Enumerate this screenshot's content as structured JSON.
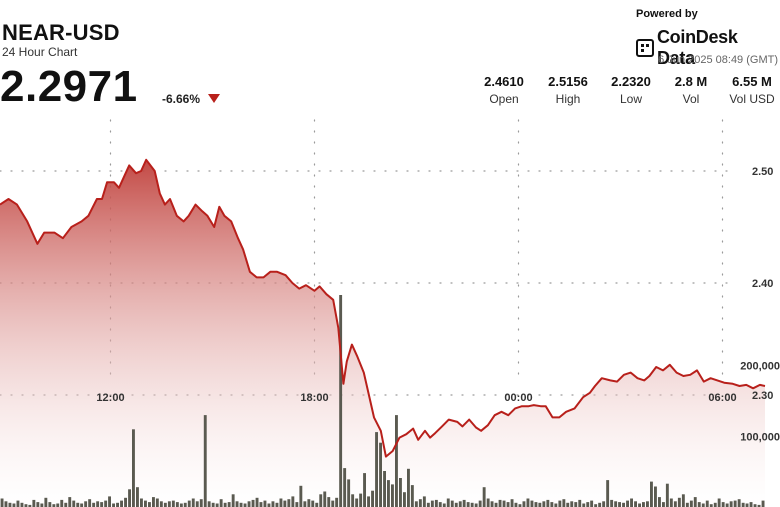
{
  "header": {
    "symbol": "NEAR-USD",
    "subtitle": "24 Hour Chart",
    "price": "2.2971",
    "change": "-6.66%",
    "change_direction_icon": "triangle-down-icon",
    "down_color": "#b8201b"
  },
  "branding": {
    "powered_by": "Powered by",
    "name": "CoinDesk Data",
    "icon": "coindesk-logo-icon",
    "date": "6 Jun 2025 08:49 (GMT)"
  },
  "stats": [
    {
      "value": "2.4610",
      "label": "Open"
    },
    {
      "value": "2.5156",
      "label": "High"
    },
    {
      "value": "2.2320",
      "label": "Low"
    },
    {
      "value": "2.8 M",
      "label": "Vol"
    },
    {
      "value": "6.55 M",
      "label": "Vol USD"
    }
  ],
  "chart_data": {
    "type": "area",
    "title": "NEAR-USD",
    "subtitle": "24 Hour Chart",
    "x_ticks": [
      "12:00",
      "18:00",
      "00:00",
      "06:00"
    ],
    "x_tick_hours": [
      3.25,
      9.25,
      15.25,
      21.25
    ],
    "x_range_hours": [
      0,
      22.5
    ],
    "price_axis": {
      "ticks": [
        "2.50",
        "2.40",
        "2.30"
      ],
      "tick_values": [
        2.5,
        2.4,
        2.3
      ],
      "range": [
        2.2,
        2.55
      ]
    },
    "volume_axis": {
      "ticks": [
        "200,000",
        "100,000"
      ],
      "tick_values": [
        200000,
        100000
      ],
      "range": [
        0,
        300000
      ]
    },
    "grid": "dotted",
    "colors": {
      "line": "#b8201b",
      "fill_top": "#c0403b",
      "fill_bottom": "#ffffff",
      "volume_bar": "#5a5a50"
    },
    "price_series": {
      "name": "Price",
      "x": [
        0,
        0.25,
        0.5,
        0.8,
        1.1,
        1.3,
        1.6,
        1.85,
        2.1,
        2.4,
        2.6,
        2.85,
        3.0,
        3.15,
        3.35,
        3.5,
        3.65,
        3.8,
        4.0,
        4.15,
        4.3,
        4.55,
        4.7,
        4.85,
        5.0,
        5.2,
        5.4,
        5.55,
        5.75,
        5.95,
        6.1,
        6.3,
        6.45,
        6.6,
        6.8,
        7.0,
        7.15,
        7.35,
        7.55,
        7.75,
        7.95,
        8.15,
        8.4,
        8.6,
        8.8,
        9.0,
        9.25,
        9.4,
        9.6,
        9.8,
        9.95,
        10.1,
        10.2,
        10.35,
        10.5,
        10.7,
        10.85,
        11.0,
        11.2,
        11.35,
        11.55,
        11.75,
        11.95,
        12.15,
        12.3,
        12.5,
        12.65,
        12.8,
        13.0,
        13.2,
        13.45,
        13.6,
        13.8,
        14.0,
        14.15,
        14.35,
        14.55,
        14.75,
        14.95,
        15.15,
        15.35,
        15.55,
        15.7,
        15.9,
        16.05,
        16.25,
        16.45,
        16.65,
        16.9,
        17.15,
        17.35,
        17.5,
        17.7,
        17.95,
        18.15,
        18.35,
        18.55,
        18.75,
        18.95,
        19.1,
        19.3,
        19.5,
        19.7,
        19.9,
        20.1,
        20.3,
        20.5,
        20.7,
        20.9,
        21.1,
        21.3,
        21.55,
        21.75,
        21.95,
        22.15,
        22.35,
        22.5
      ],
      "y": [
        2.47,
        2.475,
        2.47,
        2.455,
        2.435,
        2.445,
        2.445,
        2.44,
        2.45,
        2.455,
        2.46,
        2.475,
        2.475,
        2.49,
        2.49,
        2.485,
        2.495,
        2.505,
        2.498,
        2.5,
        2.51,
        2.5,
        2.48,
        2.47,
        2.475,
        2.46,
        2.455,
        2.46,
        2.47,
        2.464,
        2.46,
        2.45,
        2.468,
        2.46,
        2.455,
        2.44,
        2.43,
        2.41,
        2.405,
        2.405,
        2.41,
        2.41,
        2.407,
        2.4,
        2.395,
        2.398,
        2.393,
        2.397,
        2.39,
        2.385,
        2.36,
        2.31,
        2.33,
        2.345,
        2.335,
        2.32,
        2.3,
        2.28,
        2.268,
        2.245,
        2.25,
        2.262,
        2.265,
        2.27,
        2.26,
        2.268,
        2.262,
        2.266,
        2.272,
        2.278,
        2.276,
        2.272,
        2.278,
        2.271,
        2.268,
        2.273,
        2.282,
        2.285,
        2.282,
        2.288,
        2.29,
        2.29,
        2.291,
        2.29,
        2.29,
        2.28,
        2.28,
        2.285,
        2.288,
        2.298,
        2.302,
        2.308,
        2.315,
        2.313,
        2.312,
        2.318,
        2.32,
        2.315,
        2.313,
        2.317,
        2.325,
        2.322,
        2.327,
        2.32,
        2.317,
        2.318,
        2.322,
        2.312,
        2.315,
        2.313,
        2.311,
        2.31,
        2.308,
        2.309,
        2.306,
        2.309,
        2.308
      ]
    },
    "volume_series": {
      "name": "Volume",
      "values": [
        12000,
        8000,
        6000,
        5000,
        9000,
        6000,
        4000,
        3000,
        10000,
        7000,
        5000,
        13000,
        7000,
        4000,
        5000,
        10000,
        6000,
        14000,
        9000,
        6000,
        5000,
        8000,
        11000,
        6000,
        8000,
        7000,
        9000,
        15000,
        5000,
        6000,
        9000,
        13000,
        25000,
        110000,
        28000,
        12000,
        9000,
        7000,
        14000,
        12000,
        8000,
        6000,
        8000,
        9000,
        7000,
        5000,
        6000,
        9000,
        12000,
        8000,
        11000,
        130000,
        8000,
        6000,
        5000,
        11000,
        6000,
        7000,
        18000,
        8000,
        6000,
        5000,
        8000,
        10000,
        13000,
        7000,
        9000,
        5000,
        8000,
        6000,
        12000,
        9000,
        11000,
        15000,
        7000,
        30000,
        8000,
        11000,
        9000,
        6000,
        18000,
        22000,
        14000,
        9000,
        13000,
        300000,
        55000,
        39000,
        18000,
        12000,
        19000,
        48000,
        15000,
        23000,
        106000,
        91000,
        51000,
        38000,
        32000,
        130000,
        41000,
        21000,
        54000,
        31000,
        8000,
        11000,
        15000,
        6000,
        9000,
        10000,
        7000,
        5000,
        12000,
        9000,
        6000,
        8000,
        10000,
        7000,
        6000,
        5000,
        9000,
        28000,
        12000,
        8000,
        6000,
        10000,
        9000,
        7000,
        11000,
        6000,
        4000,
        8000,
        12000,
        9000,
        7000,
        6000,
        8000,
        10000,
        7000,
        5000,
        9000,
        11000,
        6000,
        8000,
        7000,
        10000,
        5000,
        7000,
        9000,
        4000,
        6000,
        8000,
        38000,
        10000,
        8000,
        7000,
        6000,
        9000,
        12000,
        8000,
        5000,
        7000,
        8000,
        36000,
        29000,
        14000,
        7000,
        33000,
        12000,
        8000,
        13000,
        18000,
        6000,
        9000,
        14000,
        7000,
        5000,
        9000,
        4000,
        6000,
        12000,
        7000,
        5000,
        8000,
        9000,
        11000,
        6000,
        5000,
        7000,
        4000,
        3000,
        9000
      ]
    }
  }
}
